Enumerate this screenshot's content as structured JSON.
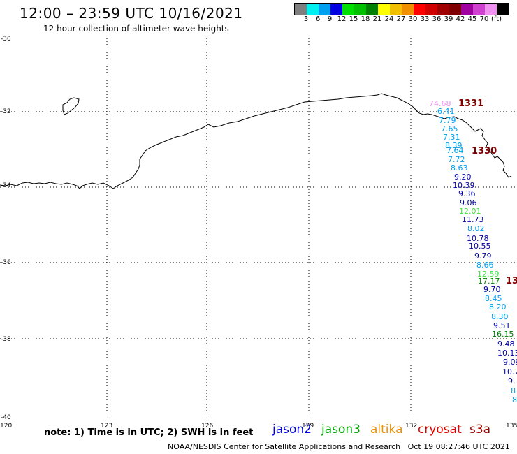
{
  "header": {
    "title": "12:00 – 23:59 UTC 10/16/2021",
    "subtitle": "12 hour collection of altimeter wave heights"
  },
  "colorbar": {
    "colors": [
      "#7f7f7f",
      "#00f0f0",
      "#00a0f0",
      "#0000e0",
      "#00e000",
      "#00c000",
      "#008000",
      "#ffff00",
      "#f0c000",
      "#f09000",
      "#ff0000",
      "#d00000",
      "#a00000",
      "#7f0000",
      "#a000a0",
      "#d040d0",
      "#f090f0",
      "#000000"
    ],
    "labels": [
      "3",
      "6",
      "9",
      "12",
      "15",
      "18",
      "21",
      "24",
      "27",
      "30",
      "33",
      "36",
      "39",
      "42",
      "45",
      "70"
    ],
    "unit": "(ft)"
  },
  "axes": {
    "lat_labels": [
      "-30",
      "-32",
      "-34",
      "-36",
      "-38",
      "-40"
    ],
    "lon_labels": [
      "120",
      "123",
      "126",
      "129",
      "132",
      "135"
    ]
  },
  "passes": [
    "1331",
    "1330",
    "13"
  ],
  "wave_heights": [
    {
      "value": "74.68",
      "color": "#f090f0"
    },
    {
      "value": "6.41",
      "color": "#00a0f0"
    },
    {
      "value": "7.79",
      "color": "#00a0f0"
    },
    {
      "value": "7.65",
      "color": "#00a0f0"
    },
    {
      "value": "7.31",
      "color": "#00a0f0"
    },
    {
      "value": "8.39",
      "color": "#00a0f0"
    },
    {
      "value": "7.64",
      "color": "#00a0f0"
    },
    {
      "value": "7.72",
      "color": "#00a0f0"
    },
    {
      "value": "8.63",
      "color": "#00a0f0"
    },
    {
      "value": "9.20",
      "color": "#0000a0"
    },
    {
      "value": "10.39",
      "color": "#0000a0"
    },
    {
      "value": "9.36",
      "color": "#0000a0"
    },
    {
      "value": "9.06",
      "color": "#0000a0"
    },
    {
      "value": "12.01",
      "color": "#40e040"
    },
    {
      "value": "11.73",
      "color": "#0000a0"
    },
    {
      "value": "8.02",
      "color": "#00a0f0"
    },
    {
      "value": "10.78",
      "color": "#0000a0"
    },
    {
      "value": "10.55",
      "color": "#0000a0"
    },
    {
      "value": "9.79",
      "color": "#0000a0"
    },
    {
      "value": "8.66",
      "color": "#00a0f0"
    },
    {
      "value": "12.59",
      "color": "#40e040"
    },
    {
      "value": "17.17",
      "color": "#008000"
    },
    {
      "value": "9.70",
      "color": "#0000a0"
    },
    {
      "value": "8.45",
      "color": "#00a0f0"
    },
    {
      "value": "8.20",
      "color": "#00a0f0"
    },
    {
      "value": "8.30",
      "color": "#00a0f0"
    },
    {
      "value": "9.51",
      "color": "#0000a0"
    },
    {
      "value": "16.15",
      "color": "#008000"
    },
    {
      "value": "9.48",
      "color": "#0000a0"
    },
    {
      "value": "10.13",
      "color": "#0000a0"
    },
    {
      "value": "9.09",
      "color": "#0000a0"
    },
    {
      "value": "10.7",
      "color": "#0000a0"
    },
    {
      "value": "9.",
      "color": "#0000a0"
    },
    {
      "value": "8",
      "color": "#00a0f0"
    },
    {
      "value": "8",
      "color": "#00a0f0"
    }
  ],
  "footer": {
    "note": "note: 1) Time is in UTC; 2) SWH is in feet",
    "satellites": [
      {
        "name": "jason2",
        "color": "#0000e0"
      },
      {
        "name": "jason3",
        "color": "#00a000"
      },
      {
        "name": "altika",
        "color": "#f09000"
      },
      {
        "name": "cryosat",
        "color": "#e00000"
      },
      {
        "name": "s3a",
        "color": "#a00000"
      }
    ],
    "credit": "NOAA/NESDIS Center for Satellite Applications and Research",
    "timestamp": "Oct 19 08:27:46 UTC 2021"
  }
}
